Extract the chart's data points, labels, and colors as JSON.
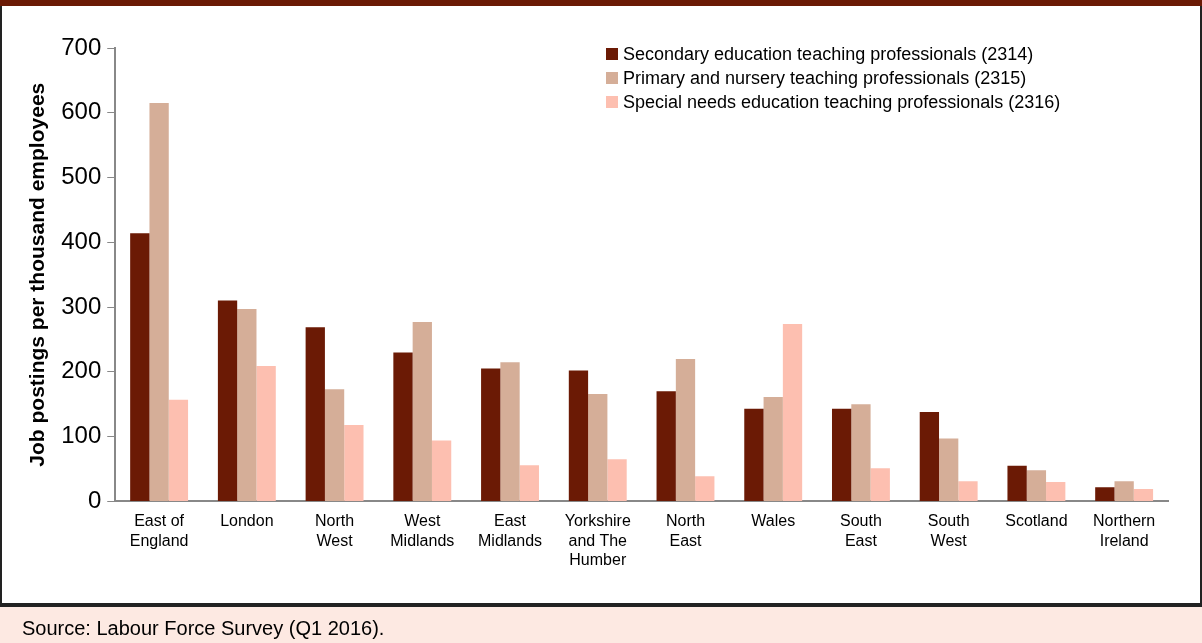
{
  "chart_data": {
    "type": "bar",
    "ylabel": "Job postings per thousand employees",
    "categories": [
      "East of England",
      "London",
      "North West",
      "West Midlands",
      "East Midlands",
      "Yorkshire and The Humber",
      "North East",
      "Wales",
      "South East",
      "South West",
      "Scotland",
      "Northern Ireland"
    ],
    "series": [
      {
        "name": "Secondary education teaching professionals (2314)",
        "color": "#6b1a05",
        "values": [
          414,
          310,
          269,
          230,
          205,
          202,
          170,
          143,
          143,
          138,
          55,
          22
        ]
      },
      {
        "name": "Primary and nursery teaching professionals (2315)",
        "color": "#d5ae98",
        "values": [
          615,
          297,
          173,
          277,
          215,
          166,
          220,
          161,
          150,
          97,
          48,
          31
        ]
      },
      {
        "name": "Special needs education teaching professionals (2316)",
        "color": "#fdbfb0",
        "values": [
          157,
          209,
          118,
          94,
          56,
          65,
          39,
          274,
          51,
          31,
          30,
          19
        ]
      }
    ],
    "ylim": [
      0,
      700
    ],
    "yticks": [
      0,
      100,
      200,
      300,
      400,
      500,
      600,
      700
    ],
    "grid": false,
    "legend": "top right",
    "annotations": [
      "Source: Labour Force Survey (Q1 2016)."
    ]
  }
}
